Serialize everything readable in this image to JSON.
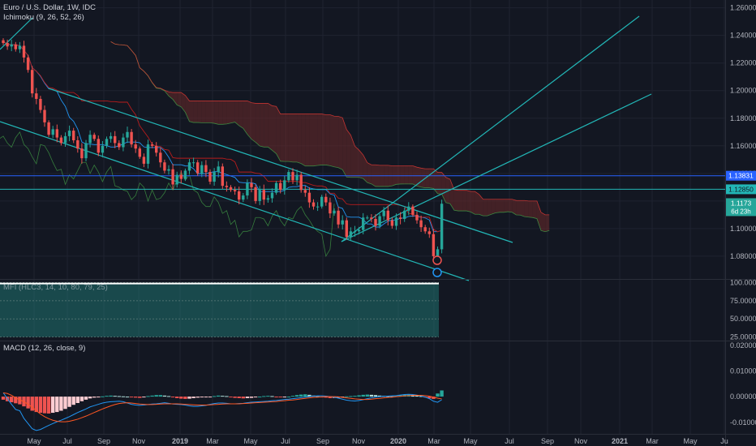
{
  "header": {
    "symbol_title": "Euro / U.S. Dollar, 1W, IDC",
    "ichimoku_label": "Ichimoku (9, 26, 52, 26)",
    "mfi_label": "MFI (HLC3, 14, 10, 80, 79, 25)",
    "macd_label": "MACD (12, 26, close, 9)"
  },
  "colors": {
    "background": "#131722",
    "bull": "#26a69a",
    "bear": "#ef5350",
    "trendline": "#22b6b6",
    "hline": "#2962ff",
    "macd_line": "#2196f3",
    "signal_line": "#ff5722",
    "cloud_bull": "#3a6b4f",
    "cloud_bear": "#6b2a2a"
  },
  "price_badges": {
    "level1": "1.13831",
    "level2": "1.12850",
    "current": "1.1173",
    "countdown": "6d 23h"
  },
  "chart_data": [
    {
      "type": "candlestick",
      "title": "Euro / U.S. Dollar, 1W, IDC",
      "y_ticks": [
        "1.26000",
        "1.24000",
        "1.22000",
        "1.20000",
        "1.18000",
        "1.16000",
        "1.14000",
        "1.12000",
        "1.10000",
        "1.08000"
      ],
      "x_ticks": [
        "May",
        "Jul",
        "Sep",
        "Nov",
        "2019",
        "Mar",
        "May",
        "Jul",
        "Sep",
        "Nov",
        "2020",
        "Mar",
        "May",
        "Jul",
        "Sep",
        "Nov",
        "2021",
        "Mar",
        "May",
        "Ju"
      ],
      "ylim": [
        1.0635,
        1.2645
      ],
      "close_path": [
        1.2345,
        1.232,
        1.2335,
        1.23,
        1.2325,
        1.224,
        1.215,
        1.198,
        1.194,
        1.186,
        1.177,
        1.168,
        1.172,
        1.166,
        1.162,
        1.167,
        1.171,
        1.164,
        1.158,
        1.151,
        1.162,
        1.168,
        1.165,
        1.155,
        1.16,
        1.165,
        1.167,
        1.162,
        1.159,
        1.166,
        1.17,
        1.161,
        1.158,
        1.152,
        1.147,
        1.161,
        1.16,
        1.155,
        1.148,
        1.142,
        1.143,
        1.132,
        1.139,
        1.136,
        1.142,
        1.148,
        1.148,
        1.14,
        1.146,
        1.141,
        1.134,
        1.141,
        1.145,
        1.131,
        1.13,
        1.128,
        1.127,
        1.121,
        1.124,
        1.133,
        1.13,
        1.12,
        1.128,
        1.121,
        1.122,
        1.126,
        1.133,
        1.128,
        1.135,
        1.141,
        1.135,
        1.139,
        1.128,
        1.126,
        1.119,
        1.116,
        1.116,
        1.123,
        1.119,
        1.111,
        1.113,
        1.103,
        1.106,
        1.094,
        1.098,
        1.098,
        1.099,
        1.108,
        1.108,
        1.107,
        1.102,
        1.109,
        1.113,
        1.106,
        1.102,
        1.108,
        1.107,
        1.113,
        1.116,
        1.11,
        1.106,
        1.101,
        1.098,
        1.096,
        1.08,
        1.085,
        1.118
      ],
      "labelled_levels": [
        1.13831,
        1.1285
      ],
      "current_price": 1.1173,
      "annotations": [
        "Ichimoku (9, 26, 52, 26)"
      ]
    },
    {
      "type": "area",
      "title": "MFI (HLC3, 14, 10, 80, 79, 25)",
      "y_ticks": [
        "100.00000",
        "75.00000",
        "50.00000",
        "25.00000"
      ],
      "ylim": [
        20,
        104
      ],
      "bands": [
        25,
        50,
        75,
        100
      ]
    },
    {
      "type": "bar",
      "title": "MACD (12, 26, close, 9)",
      "y_ticks": [
        "0.02000",
        "0.01000",
        "0.00000",
        "-0.01000"
      ],
      "ylim": [
        -0.0145,
        0.0215
      ],
      "histogram": [
        -0.0012,
        -0.0018,
        -0.0022,
        -0.0026,
        -0.003,
        -0.0038,
        -0.0046,
        -0.0055,
        -0.006,
        -0.0063,
        -0.0065,
        -0.0066,
        -0.0063,
        -0.006,
        -0.0055,
        -0.0048,
        -0.004,
        -0.0032,
        -0.0025,
        -0.0018,
        -0.0012,
        -0.0007,
        -0.0004,
        -0.0002,
        0.0001,
        0.0003,
        0.0004,
        0.0003,
        0.0002,
        0.0001,
        0,
        -0.0002,
        -0.0004,
        -0.0005,
        -0.0003,
        0.0002,
        0.0004,
        0.0006,
        0.0006,
        0.0004,
        0.0002,
        -0.0003,
        -0.0006,
        -0.0008,
        -0.0009,
        -0.0008,
        -0.0006,
        -0.0004,
        -0.0003,
        -0.0002,
        -0.0001,
        0.0002,
        0.0004,
        0.0003,
        0.0002,
        -0.0002,
        -0.0005,
        -0.0006,
        -0.0007,
        -0.0006,
        -0.0005,
        -0.0003,
        0,
        0.0002,
        0.0003,
        0.0002,
        -0.0002,
        -0.0003,
        -0.0002,
        0,
        0.0003,
        0.0006,
        0.0008,
        0.0009,
        0.0007,
        0.0004,
        0.0001,
        -0.0002,
        -0.0004,
        -0.0006,
        -0.0005,
        -0.0004,
        -0.0002,
        0.0001,
        0.0002,
        0.0003,
        0.0005,
        0.0007,
        0.0008,
        0.0007,
        0.0006,
        0.0004,
        0.0003,
        0.0002,
        0.0001,
        0.0003,
        0.0005,
        0.0008,
        0.0009,
        0.0007,
        0.0005,
        0.0002,
        -0.0003,
        -0.0007,
        -0.0009,
        0.0012,
        0.0024
      ],
      "macd_line": [
        0.0015,
        -0.0008,
        -0.003,
        -0.005,
        -0.0055,
        -0.0085,
        -0.0105,
        -0.0125,
        -0.0132,
        -0.0128,
        -0.012,
        -0.0112,
        -0.0105,
        -0.0098,
        -0.0092,
        -0.0085,
        -0.0078,
        -0.007,
        -0.0062,
        -0.0055,
        -0.0048,
        -0.004,
        -0.0035,
        -0.003,
        -0.0025,
        -0.0022,
        -0.002,
        -0.0019,
        -0.0018,
        -0.002,
        -0.0025,
        -0.003,
        -0.0033,
        -0.0034,
        -0.0033,
        -0.0031,
        -0.0029,
        -0.0028,
        -0.0026,
        -0.0024,
        -0.0026,
        -0.0029,
        -0.003,
        -0.0031,
        -0.0033,
        -0.0036,
        -0.0038,
        -0.0038,
        -0.0036,
        -0.0034,
        -0.003,
        -0.0027,
        -0.0025,
        -0.0025,
        -0.0026,
        -0.0028,
        -0.0028,
        -0.0027,
        -0.0026,
        -0.0024,
        -0.0022,
        -0.0021,
        -0.002,
        -0.0019,
        -0.0018,
        -0.0016,
        -0.0015,
        -0.0013,
        -0.0011,
        -0.001,
        -0.0008,
        -0.0006,
        -0.0004,
        -0.0002,
        0,
        0.0002,
        0.0003,
        0.0003,
        0.0002,
        0,
        -0.0002,
        -0.0006,
        -0.001,
        -0.0014,
        -0.0016,
        -0.0017,
        -0.0015,
        -0.0012,
        -0.0008,
        -0.0005,
        -0.0002,
        0,
        0.0001,
        0.0002,
        0.0003,
        0.0004,
        0.0006,
        0.0008,
        0.0009,
        0.0008,
        0.0006,
        0.0003,
        -0.0002,
        -0.0008,
        -0.0018,
        -0.0022,
        -0.0012
      ],
      "signal_line": [
        0.0015,
        0.0012,
        0.0005,
        -0.0005,
        -0.0012,
        -0.002,
        -0.003,
        -0.0042,
        -0.0055,
        -0.0068,
        -0.0078,
        -0.0086,
        -0.0092,
        -0.0096,
        -0.0098,
        -0.0098,
        -0.0096,
        -0.0092,
        -0.0088,
        -0.0082,
        -0.0076,
        -0.0069,
        -0.0062,
        -0.0055,
        -0.0048,
        -0.0042,
        -0.0036,
        -0.0031,
        -0.0027,
        -0.0025,
        -0.0024,
        -0.0025,
        -0.0027,
        -0.0029,
        -0.003,
        -0.0031,
        -0.0031,
        -0.003,
        -0.0029,
        -0.0028,
        -0.0028,
        -0.0028,
        -0.0028,
        -0.0029,
        -0.003,
        -0.0031,
        -0.0032,
        -0.0033,
        -0.0033,
        -0.0033,
        -0.0032,
        -0.0031,
        -0.003,
        -0.0029,
        -0.0028,
        -0.0028,
        -0.0028,
        -0.0028,
        -0.0027,
        -0.0026,
        -0.0025,
        -0.0024,
        -0.0023,
        -0.0022,
        -0.0021,
        -0.002,
        -0.0019,
        -0.0017,
        -0.0016,
        -0.0014,
        -0.0013,
        -0.0011,
        -0.0009,
        -0.0007,
        -0.0005,
        -0.0003,
        -0.0002,
        -0.0001,
        0,
        0,
        0,
        -0.0001,
        -0.0003,
        -0.0005,
        -0.0007,
        -0.0009,
        -0.001,
        -0.0011,
        -0.0011,
        -0.001,
        -0.0008,
        -0.0007,
        -0.0005,
        -0.0003,
        -0.0002,
        0,
        0.0001,
        0.0003,
        0.0004,
        0.0005,
        0.0005,
        0.0005,
        0.0004,
        0.0002,
        -0.0002,
        -0.0006,
        -0.0009
      ]
    }
  ]
}
